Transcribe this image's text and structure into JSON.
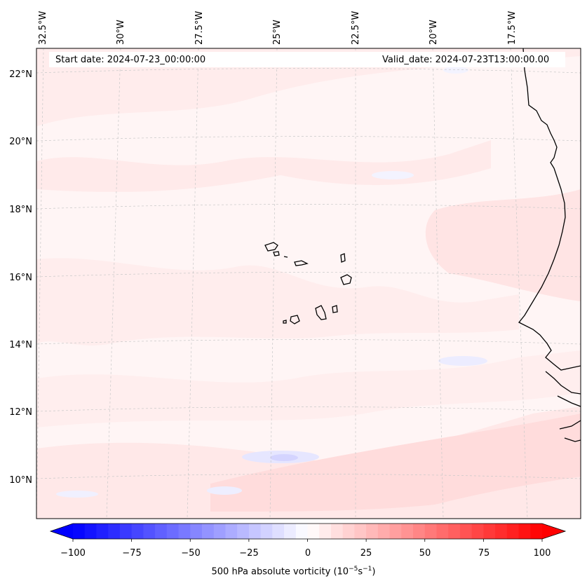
{
  "map": {
    "lon_labels": [
      "32.5°W",
      "30°W",
      "27.5°W",
      "25°W",
      "22.5°W",
      "20°W",
      "17.5°W"
    ],
    "lat_labels": [
      "22°N",
      "20°N",
      "18°N",
      "16°N",
      "14°N",
      "12°N",
      "10°N"
    ],
    "start_date": "Start date: 2024-07-23_00:00:00",
    "valid_date": "Valid_date: 2024-07-23T13:00:00.00"
  },
  "colorbar": {
    "ticks": [
      "−100",
      "−75",
      "−50",
      "−25",
      "0",
      "25",
      "50",
      "75",
      "100"
    ],
    "label_main": "500 hPa absolute vorticity (10",
    "label_exp1": "−5",
    "label_mid": "s",
    "label_exp2": "−1",
    "label_end": ")",
    "min_color": "#0000ff",
    "mid_color": "#ffffff",
    "max_color": "#ff0000"
  }
}
